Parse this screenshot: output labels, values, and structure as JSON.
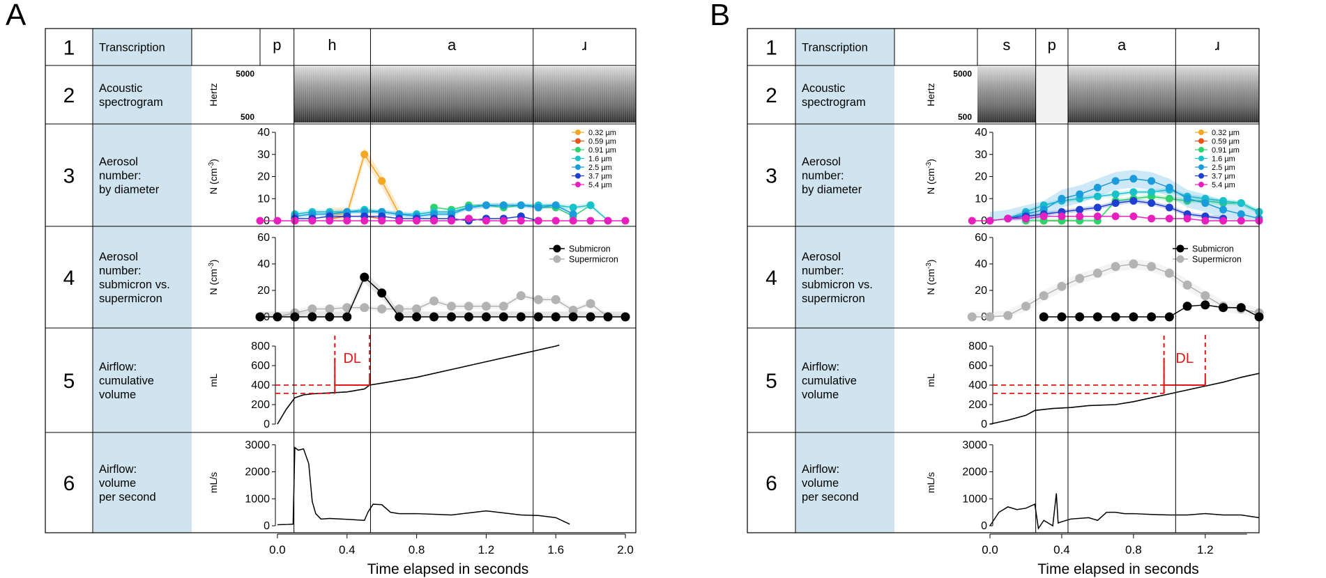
{
  "figure": {
    "x_axis_label": "Time elapsed in seconds",
    "row_labels": [
      {
        "num": "1",
        "lines": [
          "Transcription"
        ]
      },
      {
        "num": "2",
        "lines": [
          "Acoustic",
          "spectrogram"
        ]
      },
      {
        "num": "3",
        "lines": [
          "Aerosol",
          "number:",
          "by diameter"
        ]
      },
      {
        "num": "4",
        "lines": [
          "Aerosol",
          "number:",
          "submicron vs.",
          "supermicron"
        ]
      },
      {
        "num": "5",
        "lines": [
          "Airflow:",
          "cumulative",
          "volume"
        ]
      },
      {
        "num": "6",
        "lines": [
          "Airflow:",
          "volume",
          "per second"
        ]
      }
    ],
    "colors": {
      "label_bg": "#cfe4ee",
      "d032": "#f5a623",
      "d059": "#e8541c",
      "d091": "#2ed46a",
      "d16": "#19c2c9",
      "d25": "#1a9bdc",
      "d37": "#1f3fd1",
      "d54": "#e81fbf",
      "submicron": "#000000",
      "supermicron": "#b3b3b3",
      "dl": "#e41414"
    },
    "legend_diam": [
      "0.32 µm",
      "0.59 µm",
      "0.91 µm",
      "1.6 µm",
      "2.5 µm",
      "3.7 µm",
      "5.4 µm"
    ],
    "legend_size": [
      "Submicron",
      "Supermicron"
    ],
    "spec": {
      "ylabel": "Hertz",
      "ticks": [
        "5000",
        "500"
      ]
    },
    "units": {
      "r3": "N (cm",
      "r4": "N (cm",
      "exp": "-3",
      "close": ")",
      "r5": "mL",
      "r6": "mL/s"
    },
    "dl_label": "DL"
  },
  "chart_data": [
    {
      "panel": "A",
      "type": "line",
      "phonemes": [
        {
          "label": "p",
          "t0": -0.1,
          "t1": 0.095
        },
        {
          "label": "h",
          "t0": 0.095,
          "t1": 0.535
        },
        {
          "label": "a",
          "t0": 0.535,
          "t1": 1.47
        },
        {
          "label": "ɹ",
          "t0": 1.47,
          "t1": 2.06
        }
      ],
      "xlim": [
        -0.1,
        2.06
      ],
      "x_ticks": [
        0.0,
        0.4,
        0.8,
        1.2,
        1.6,
        2.0
      ],
      "x_tick_labels": [
        "0.0",
        "0.4",
        "0.8",
        "1.2",
        "1.6",
        "2.0"
      ],
      "boundaries": [
        0.095,
        0.535,
        1.47
      ],
      "spec_start": 0.095,
      "aerosol_by_diameter": {
        "ylim": [
          0,
          40
        ],
        "yticks": [
          0,
          10,
          20,
          30,
          40
        ],
        "series": [
          {
            "name": "0.32 µm",
            "x": [
              0.3,
              0.4,
              0.5,
              0.6,
              0.7
            ],
            "y": [
              3,
              3,
              30,
              18,
              3
            ],
            "band": 3
          },
          {
            "name": "0.59 µm",
            "x": [
              0.3,
              0.4,
              0.5,
              0.6
            ],
            "y": [
              1,
              2,
              2,
              1
            ],
            "band": 0
          },
          {
            "name": "0.91 µm",
            "x": [
              0.9,
              1.0,
              1.1,
              1.2,
              1.3,
              1.4,
              1.5,
              1.6,
              1.7,
              1.8
            ],
            "y": [
              6,
              5,
              7,
              7,
              6,
              7,
              6,
              6,
              2,
              7
            ],
            "band": 0
          },
          {
            "name": "1.6 µm",
            "x": [
              0.1,
              0.2,
              0.3,
              0.4,
              0.5,
              0.6,
              0.7,
              0.8,
              0.9,
              1.0,
              1.1,
              1.2,
              1.3,
              1.4,
              1.5,
              1.6,
              1.7,
              1.8,
              1.9
            ],
            "y": [
              3,
              4,
              4,
              4,
              5,
              4,
              3,
              3,
              4,
              4,
              6,
              7,
              7,
              7,
              7,
              7,
              6,
              7,
              0
            ],
            "band": 1
          },
          {
            "name": "2.5 µm",
            "x": [
              0.1,
              0.2,
              0.3,
              0.4,
              0.5,
              0.6,
              0.7,
              0.8,
              0.9,
              1.0,
              1.1,
              1.2,
              1.3,
              1.4,
              1.5,
              1.6,
              1.7
            ],
            "y": [
              2,
              3,
              3,
              4,
              4,
              4,
              3,
              2,
              3,
              3,
              6,
              7,
              7,
              7,
              6,
              7,
              3
            ],
            "band": 1
          },
          {
            "name": "3.7 µm",
            "x": [
              0.1,
              0.2,
              0.3,
              0.4,
              0.5,
              0.6,
              0.7,
              0.8,
              0.9,
              1.0,
              1.1,
              1.2,
              1.3,
              1.4,
              1.5
            ],
            "y": [
              1,
              1,
              2,
              2,
              2,
              2,
              1,
              1,
              1,
              1,
              0,
              1,
              1,
              2,
              0
            ],
            "band": 0
          },
          {
            "name": "5.4 µm",
            "x": [
              -0.1,
              0.0,
              0.1,
              0.2,
              0.3,
              0.4,
              0.5,
              0.6,
              0.7,
              0.8,
              0.9,
              1.0,
              1.1,
              1.2,
              1.3,
              1.4,
              1.5,
              1.6,
              1.7,
              1.8,
              1.9,
              2.0
            ],
            "y": [
              0,
              0,
              0,
              0,
              0,
              0,
              0,
              0,
              0,
              0,
              0,
              0,
              1,
              0,
              0,
              0,
              0,
              0,
              0,
              0,
              0,
              0
            ],
            "band": 0
          }
        ]
      },
      "aerosol_by_size": {
        "ylim": [
          0,
          60
        ],
        "yticks": [
          0,
          20,
          40,
          60
        ],
        "series": [
          {
            "name": "Submicron",
            "x": [
              -0.1,
              0.0,
              0.1,
              0.2,
              0.3,
              0.4,
              0.5,
              0.6,
              0.7,
              0.8,
              0.9,
              1.0,
              1.1,
              1.2,
              1.3,
              1.4,
              1.5,
              1.6,
              1.7,
              1.8,
              1.9,
              2.0
            ],
            "y": [
              0,
              0,
              0,
              0,
              0,
              0,
              30,
              18,
              0,
              0,
              0,
              0,
              0,
              0,
              0,
              0,
              0,
              0,
              0,
              0,
              0,
              0
            ],
            "band": 4
          },
          {
            "name": "Supermicron",
            "x": [
              -0.1,
              0.0,
              0.1,
              0.2,
              0.3,
              0.4,
              0.5,
              0.6,
              0.7,
              0.8,
              0.9,
              1.0,
              1.1,
              1.2,
              1.3,
              1.4,
              1.5,
              1.6,
              1.7,
              1.8,
              1.9,
              2.0
            ],
            "y": [
              0,
              0,
              3,
              6,
              6,
              7,
              7,
              6,
              6,
              6,
              12,
              8,
              8,
              8,
              8,
              16,
              13,
              13,
              5,
              10,
              0,
              0
            ],
            "band": 2
          }
        ]
      },
      "cumulative_volume": {
        "ylim": [
          0,
          900
        ],
        "yticks": [
          0,
          200,
          400,
          600,
          800
        ],
        "x": [
          0.0,
          0.05,
          0.1,
          0.15,
          0.2,
          0.3,
          0.4,
          0.5,
          0.53,
          0.6,
          0.8,
          1.0,
          1.2,
          1.4,
          1.6,
          1.62
        ],
        "y": [
          0,
          150,
          270,
          300,
          310,
          320,
          330,
          360,
          400,
          420,
          480,
          560,
          640,
          720,
          800,
          810
        ],
        "dl": {
          "t_start": 0.33,
          "t_end": 0.53,
          "v_start": 315,
          "v_end": 400
        }
      },
      "volume_per_second": {
        "ylim": [
          0,
          3200
        ],
        "yticks": [
          0,
          1000,
          2000,
          3000
        ],
        "x": [
          0.0,
          0.06,
          0.09,
          0.1,
          0.12,
          0.15,
          0.18,
          0.2,
          0.22,
          0.25,
          0.3,
          0.4,
          0.5,
          0.52,
          0.55,
          0.6,
          0.65,
          0.7,
          0.8,
          1.0,
          1.2,
          1.4,
          1.5,
          1.6,
          1.68
        ],
        "y": [
          40,
          50,
          60,
          2900,
          2800,
          2850,
          2300,
          900,
          450,
          250,
          270,
          240,
          200,
          500,
          800,
          780,
          500,
          450,
          450,
          400,
          550,
          400,
          380,
          300,
          60
        ]
      }
    },
    {
      "panel": "B",
      "type": "line",
      "phonemes": [
        {
          "label": "s",
          "t0": -0.07,
          "t1": 0.255
        },
        {
          "label": "p",
          "t0": 0.255,
          "t1": 0.435
        },
        {
          "label": "a",
          "t0": 0.435,
          "t1": 1.035
        },
        {
          "label": "ɹ",
          "t0": 1.035,
          "t1": 1.5
        }
      ],
      "xlim": [
        -0.07,
        1.5
      ],
      "x_ticks": [
        0.0,
        0.4,
        0.8,
        1.2
      ],
      "x_tick_labels": [
        "0.0",
        "0.4",
        "0.8",
        "1.2"
      ],
      "boundaries": [
        0.255,
        0.435,
        1.035
      ],
      "spec_start": -0.07,
      "aerosol_by_diameter": {
        "ylim": [
          0,
          40
        ],
        "yticks": [
          0,
          10,
          20,
          30,
          40
        ],
        "series": [
          {
            "name": "0.32 µm",
            "x": [
              0.3,
              0.4,
              0.5
            ],
            "y": [
              0,
              0,
              0
            ],
            "band": 0
          },
          {
            "name": "0.59 µm",
            "x": [
              0.3,
              0.4
            ],
            "y": [
              0,
              0
            ],
            "band": 0
          },
          {
            "name": "0.91 µm",
            "x": [
              0.2,
              0.3,
              0.4,
              0.5,
              0.6,
              0.7,
              0.8,
              0.9,
              1.0,
              1.1,
              1.2,
              1.3,
              1.4,
              1.5
            ],
            "y": [
              0,
              0,
              0,
              0,
              0,
              9,
              10,
              11,
              10,
              9,
              9,
              8,
              8,
              4
            ],
            "band": 1
          },
          {
            "name": "1.6 µm",
            "x": [
              0.1,
              0.2,
              0.3,
              0.4,
              0.5,
              0.6,
              0.7,
              0.8,
              0.9,
              1.0,
              1.1,
              1.2,
              1.3,
              1.4,
              1.5
            ],
            "y": [
              1,
              4,
              7,
              9,
              10,
              11,
              12,
              13,
              13,
              14,
              11,
              10,
              9,
              8,
              4
            ],
            "band": 1
          },
          {
            "name": "2.5 µm",
            "x": [
              0.0,
              0.1,
              0.2,
              0.3,
              0.4,
              0.5,
              0.6,
              0.7,
              0.8,
              0.9,
              1.0,
              1.1,
              1.2,
              1.3,
              1.4,
              1.5
            ],
            "y": [
              0,
              1,
              3,
              5,
              10,
              12,
              15,
              18,
              19,
              18,
              15,
              10,
              8,
              5,
              3,
              1
            ],
            "band": 4
          },
          {
            "name": "3.7 µm",
            "x": [
              0.1,
              0.2,
              0.3,
              0.4,
              0.5,
              0.6,
              0.7,
              0.8,
              0.9,
              1.0,
              1.1,
              1.2,
              1.3
            ],
            "y": [
              1,
              2,
              3,
              4,
              5,
              6,
              8,
              9,
              8,
              6,
              3,
              2,
              1
            ],
            "band": 1
          },
          {
            "name": "5.4 µm",
            "x": [
              -0.1,
              0.0,
              0.1,
              0.2,
              0.3,
              0.4,
              0.5,
              0.6,
              0.7,
              0.8,
              0.9,
              1.0,
              1.1,
              1.2,
              1.3,
              1.4,
              1.5
            ],
            "y": [
              0,
              0,
              1,
              1,
              2,
              2,
              2,
              2,
              2,
              2,
              1,
              1,
              1,
              0,
              0,
              0,
              0
            ],
            "band": 0
          }
        ]
      },
      "aerosol_by_size": {
        "ylim": [
          0,
          60
        ],
        "yticks": [
          0,
          20,
          40,
          60
        ],
        "series": [
          {
            "name": "Submicron",
            "x": [
              0.3,
              0.4,
              0.5,
              0.6,
              0.7,
              0.8,
              0.9,
              1.0,
              1.1,
              1.2,
              1.3,
              1.4,
              1.5
            ],
            "y": [
              0,
              0,
              0,
              0,
              0,
              0,
              0,
              0,
              8,
              9,
              7,
              7,
              0
            ],
            "band": 0
          },
          {
            "name": "Supermicron",
            "x": [
              -0.1,
              0.0,
              0.1,
              0.2,
              0.3,
              0.4,
              0.5,
              0.6,
              0.7,
              0.8,
              0.9,
              1.0,
              1.1,
              1.2,
              1.3,
              1.4,
              1.5
            ],
            "y": [
              0,
              0,
              1,
              8,
              16,
              23,
              29,
              33,
              38,
              40,
              38,
              33,
              24,
              16,
              8,
              6,
              3
            ],
            "band": 4
          }
        ]
      },
      "cumulative_volume": {
        "ylim": [
          0,
          900
        ],
        "yticks": [
          0,
          200,
          400,
          600,
          800
        ],
        "x": [
          0.0,
          0.1,
          0.2,
          0.25,
          0.35,
          0.45,
          0.55,
          0.7,
          0.8,
          0.9,
          1.0,
          1.1,
          1.2,
          1.3,
          1.4,
          1.5
        ],
        "y": [
          0,
          40,
          90,
          140,
          160,
          170,
          190,
          200,
          230,
          270,
          310,
          350,
          390,
          430,
          480,
          520
        ],
        "dl": {
          "t_start": 0.97,
          "t_end": 1.2,
          "v_start": 315,
          "v_end": 400
        }
      },
      "volume_per_second": {
        "ylim": [
          0,
          3200
        ],
        "yticks": [
          0,
          1000,
          2000,
          3000
        ],
        "x": [
          0.0,
          0.05,
          0.1,
          0.15,
          0.2,
          0.25,
          0.27,
          0.3,
          0.35,
          0.37,
          0.38,
          0.4,
          0.45,
          0.55,
          0.6,
          0.65,
          0.7,
          0.75,
          0.8,
          0.9,
          1.0,
          1.1,
          1.2,
          1.3,
          1.4,
          1.5
        ],
        "y": [
          0,
          500,
          700,
          600,
          650,
          800,
          -100,
          200,
          0,
          1200,
          100,
          150,
          250,
          300,
          200,
          500,
          500,
          450,
          450,
          420,
          400,
          400,
          450,
          400,
          400,
          300
        ]
      }
    }
  ],
  "panels": [
    {
      "letter": "A"
    },
    {
      "letter": "B"
    }
  ]
}
